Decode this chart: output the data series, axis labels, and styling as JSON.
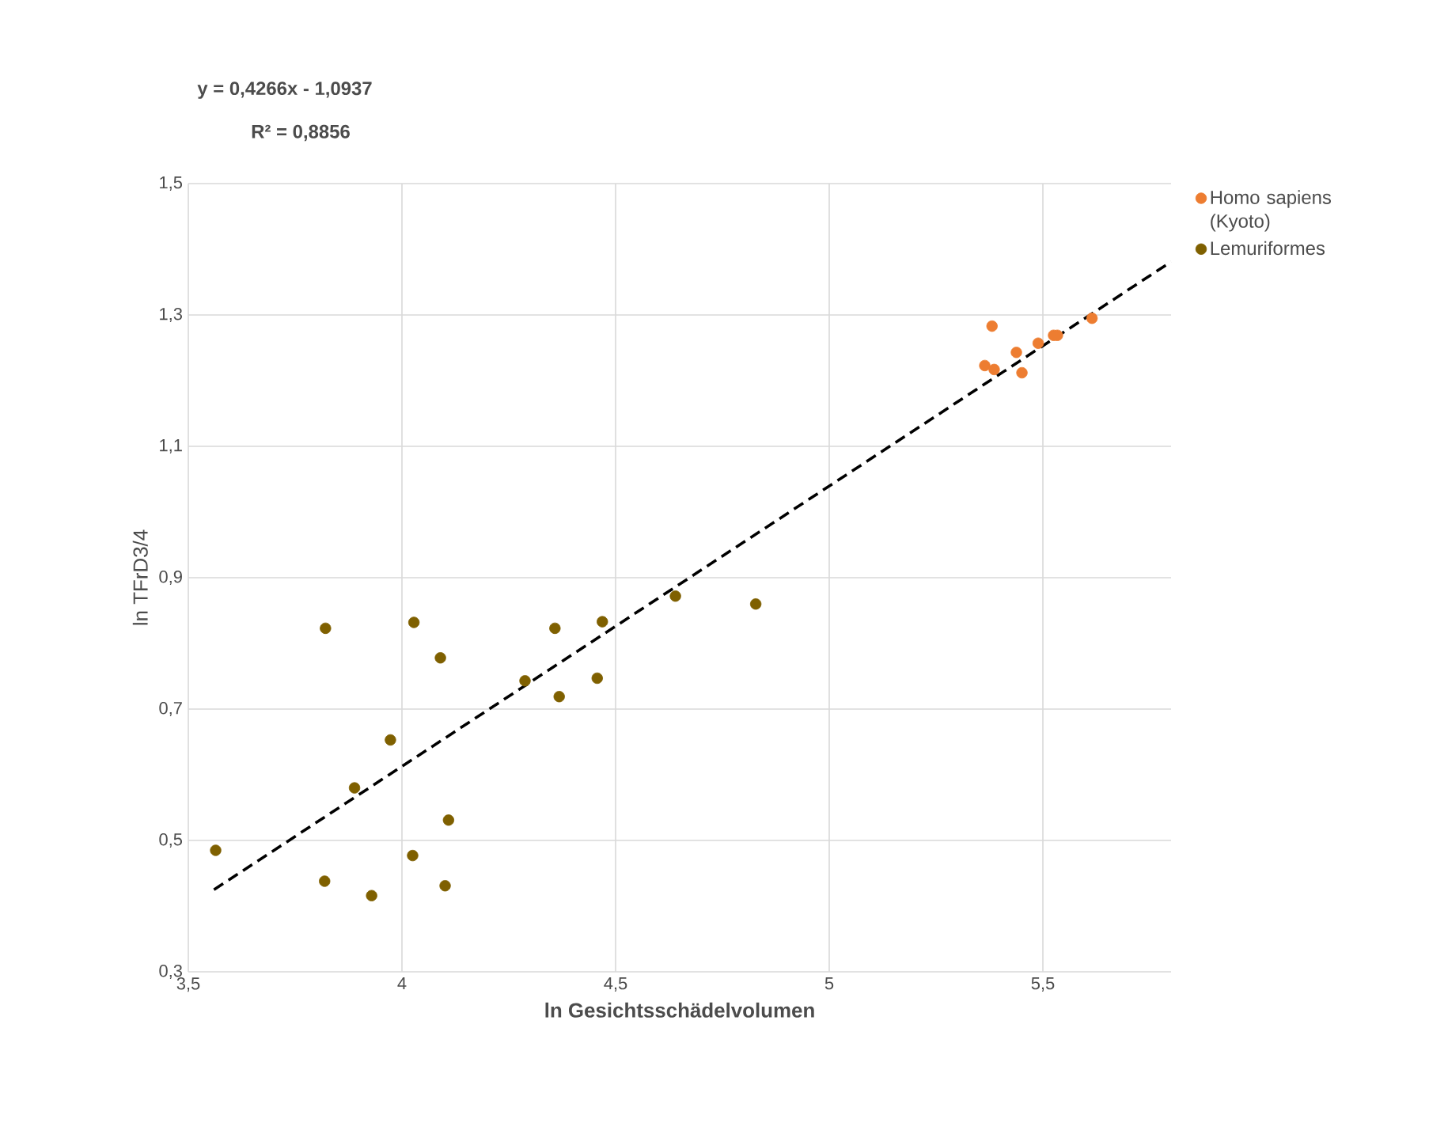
{
  "chart_data": {
    "type": "scatter",
    "xlabel": "ln Gesichtsschädelvolumen",
    "ylabel": "ln TFrD3/4",
    "annotations": [
      "y = 0,4266x - 1,0937",
      "R² = 0,8856"
    ],
    "xlim": [
      3.5,
      5.8
    ],
    "ylim": [
      0.3,
      1.5
    ],
    "xticks": [
      {
        "value": 3.5,
        "label": "3,5"
      },
      4,
      {
        "value": 4.5,
        "label": "4,5"
      },
      5,
      {
        "value": 5.5,
        "label": "5,5"
      }
    ],
    "yticks": [
      {
        "value": 0.3,
        "label": "0,3"
      },
      {
        "value": 0.5,
        "label": "0,5"
      },
      {
        "value": 0.7,
        "label": "0,7"
      },
      {
        "value": 0.9,
        "label": "0,9"
      },
      {
        "value": 1.1,
        "label": "1,1"
      },
      {
        "value": 1.3,
        "label": "1,3"
      },
      {
        "value": 1.5,
        "label": "1,5"
      }
    ],
    "grid": true,
    "legend": "top right",
    "marker": "circle",
    "series": [
      {
        "name": "Homo sapiens (Kyoto)",
        "color": "#ed7d31",
        "x": [
          5.381,
          5.364,
          5.386,
          5.438,
          5.451,
          5.489,
          5.525,
          5.534,
          5.615
        ],
        "values": [
          1.283,
          1.223,
          1.217,
          1.243,
          1.212,
          1.257,
          1.269,
          1.269,
          1.295
        ]
      },
      {
        "name": "Lemuriformes",
        "color": "#7f6000",
        "x": [
          3.821,
          4.028,
          4.09,
          4.358,
          4.469,
          4.64,
          4.828,
          4.288,
          4.368,
          4.457,
          3.973,
          3.889,
          4.109,
          3.564,
          4.025,
          3.819,
          3.929,
          4.101
        ],
        "values": [
          0.823,
          0.832,
          0.778,
          0.823,
          0.833,
          0.872,
          0.86,
          0.743,
          0.719,
          0.747,
          0.653,
          0.58,
          0.531,
          0.485,
          0.477,
          0.438,
          0.416,
          0.431
        ]
      },
      {
        "type": "line",
        "color": "#000000",
        "line_style": "dashed",
        "marker": "none",
        "x": [
          3.56,
          5.8
        ],
        "values": [
          0.425,
          1.381
        ]
      }
    ]
  }
}
